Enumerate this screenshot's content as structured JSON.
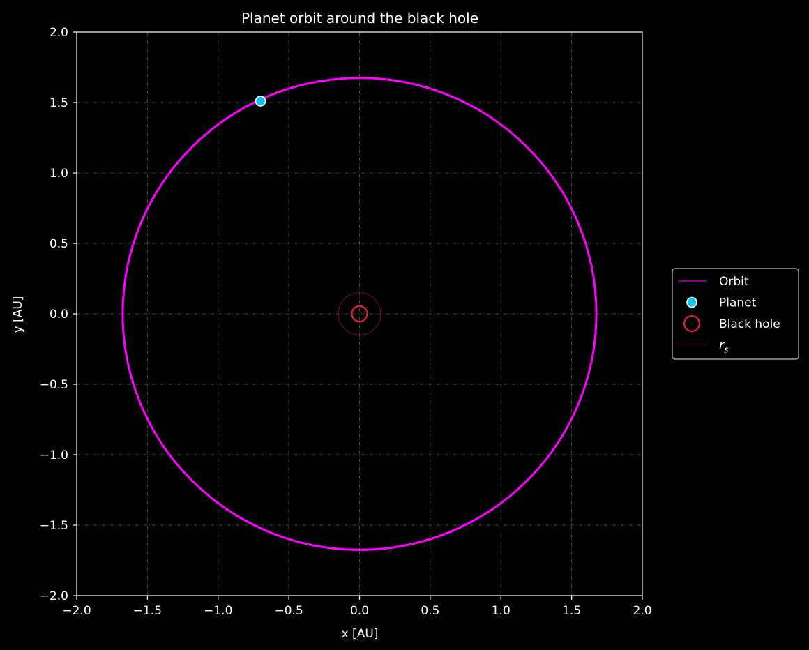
{
  "chart_data": {
    "type": "line",
    "title": "Planet orbit around the black hole",
    "xlabel": "x [AU]",
    "ylabel": "y [AU]",
    "xlim": [
      -2.0,
      2.0
    ],
    "ylim": [
      -2.0,
      2.0
    ],
    "xticks": [
      -2.0,
      -1.5,
      -1.0,
      -0.5,
      0.0,
      0.5,
      1.0,
      1.5,
      2.0
    ],
    "yticks": [
      -2.0,
      -1.5,
      -1.0,
      -0.5,
      0.0,
      0.5,
      1.0,
      1.5,
      2.0
    ],
    "xtick_labels": [
      "−2.0",
      "−1.5",
      "−1.0",
      "−0.5",
      "0.0",
      "0.5",
      "1.0",
      "1.5",
      "2.0"
    ],
    "ytick_labels": [
      "−2.0",
      "−1.5",
      "−1.0",
      "−0.5",
      "0.0",
      "0.5",
      "1.0",
      "1.5",
      "2.0"
    ],
    "grid": true,
    "legend_position": "right",
    "background": "#000000",
    "series": [
      {
        "name": "Orbit",
        "kind": "circle",
        "center": [
          0.0,
          0.0
        ],
        "radius": 1.675,
        "color": "#ff00ff"
      },
      {
        "name": "Planet",
        "kind": "point",
        "x": -0.7,
        "y": 1.51,
        "color": "#11c2f5",
        "edge_color": "#ffffff"
      },
      {
        "name": "Black hole",
        "kind": "marker",
        "x": 0.0,
        "y": 0.0,
        "color": "#e0203a"
      },
      {
        "name": "r_s",
        "kind": "circle",
        "center": [
          0.0,
          0.0
        ],
        "radius": 0.15,
        "color": "#7a1020"
      }
    ],
    "legend": {
      "entries": [
        {
          "label": "Orbit",
          "symbol": "line",
          "color": "#ff00ff"
        },
        {
          "label": "Planet",
          "symbol": "dot",
          "color": "#11c2f5"
        },
        {
          "label": "Black hole",
          "symbol": "ring",
          "color": "#e0203a"
        },
        {
          "label": "r",
          "subscript": "s",
          "symbol": "line",
          "color": "#7a1020"
        }
      ]
    }
  }
}
